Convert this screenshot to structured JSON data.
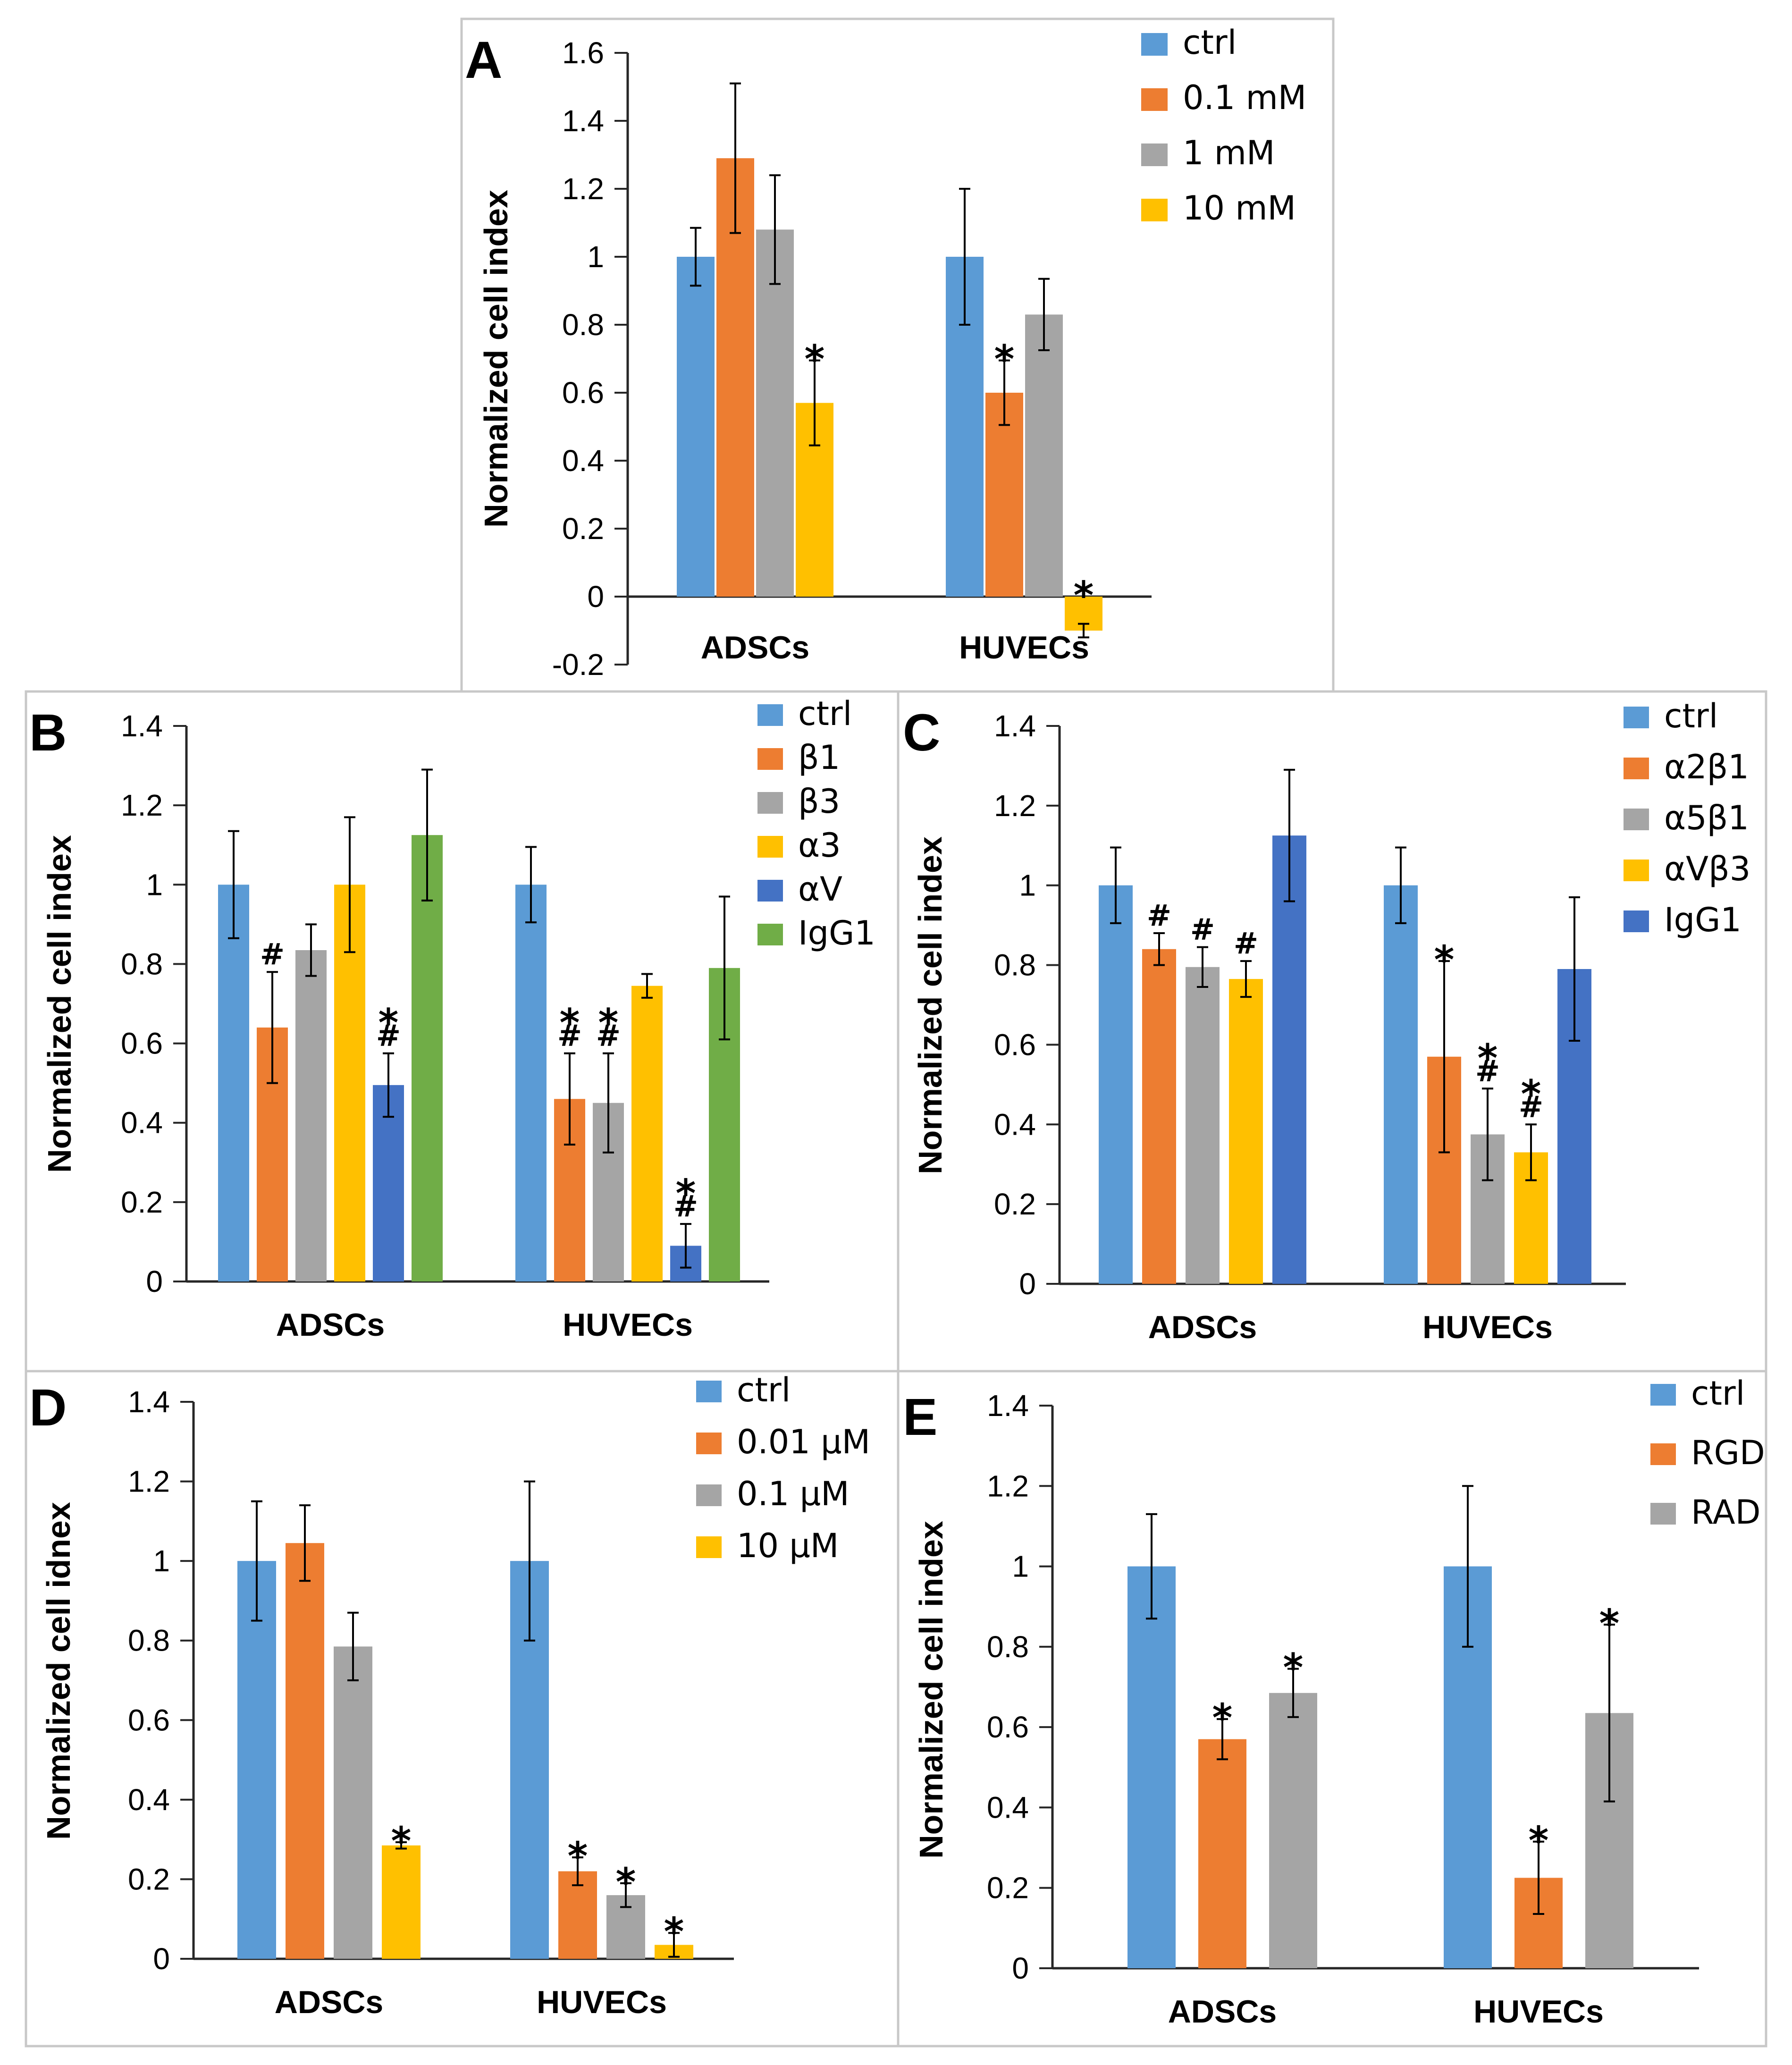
{
  "colors": {
    "ctrl": "#5B9BD5",
    "orange": "#ED7D31",
    "gray": "#A5A5A5",
    "yellow": "#FFC000",
    "darkblue": "#4472C4",
    "green": "#70AD47"
  },
  "chart_data": [
    {
      "panel": "A",
      "type": "bar",
      "ylabel": "Normalized cell index",
      "ylim": [
        -0.2,
        1.6
      ],
      "yticks": [
        "-0.2",
        "0",
        "0.2",
        "0.4",
        "0.6",
        "0.8",
        "1",
        "1.2",
        "1.4",
        "1.6"
      ],
      "categories": [
        "ADSCs",
        "HUVECs"
      ],
      "series": [
        {
          "name": "ctrl",
          "color": "#5B9BD5",
          "values": [
            1.0,
            1.0
          ],
          "errors": [
            0.085,
            0.2
          ],
          "marks": [
            [],
            []
          ]
        },
        {
          "name": "0.1 mM",
          "color": "#ED7D31",
          "values": [
            1.29,
            0.6
          ],
          "errors": [
            0.22,
            0.095
          ],
          "marks": [
            [],
            [
              "*"
            ]
          ]
        },
        {
          "name": "1 mM",
          "color": "#A5A5A5",
          "values": [
            1.08,
            0.83
          ],
          "errors": [
            0.16,
            0.105
          ],
          "marks": [
            [],
            []
          ]
        },
        {
          "name": "10 mM",
          "color": "#FFC000",
          "values": [
            0.57,
            -0.1
          ],
          "errors": [
            0.125,
            0.02
          ],
          "marks": [
            [
              "*"
            ],
            [
              "*"
            ]
          ]
        }
      ]
    },
    {
      "panel": "B",
      "type": "bar",
      "ylabel": "Normalized cell index",
      "ylim": [
        0,
        1.4
      ],
      "yticks": [
        "0",
        "0.2",
        "0.4",
        "0.6",
        "0.8",
        "1",
        "1.2",
        "1.4"
      ],
      "categories": [
        "ADSCs",
        "HUVECs"
      ],
      "series": [
        {
          "name": "ctrl",
          "color": "#5B9BD5",
          "values": [
            1.0,
            1.0
          ],
          "errors": [
            0.135,
            0.095
          ],
          "marks": [
            [],
            []
          ]
        },
        {
          "name": "β1",
          "color": "#ED7D31",
          "values": [
            0.64,
            0.46
          ],
          "errors": [
            0.14,
            0.115
          ],
          "marks": [
            [
              "#"
            ],
            [
              "*",
              "#"
            ]
          ]
        },
        {
          "name": "β3",
          "color": "#A5A5A5",
          "values": [
            0.835,
            0.45
          ],
          "errors": [
            0.065,
            0.125
          ],
          "marks": [
            [],
            [
              "*",
              "#"
            ]
          ]
        },
        {
          "name": "α3",
          "color": "#FFC000",
          "values": [
            1.0,
            0.745
          ],
          "errors": [
            0.17,
            0.03
          ],
          "marks": [
            [],
            []
          ]
        },
        {
          "name": "αV",
          "color": "#4472C4",
          "values": [
            0.495,
            0.09
          ],
          "errors": [
            0.08,
            0.055
          ],
          "marks": [
            [
              "*",
              "#"
            ],
            [
              "*",
              "#"
            ]
          ]
        },
        {
          "name": "IgG1",
          "color": "#70AD47",
          "values": [
            1.125,
            0.79
          ],
          "errors": [
            0.165,
            0.18
          ],
          "marks": [
            [],
            []
          ]
        }
      ]
    },
    {
      "panel": "C",
      "type": "bar",
      "ylabel": "Normalized cell index",
      "ylim": [
        0,
        1.4
      ],
      "yticks": [
        "0",
        "0.2",
        "0.4",
        "0.6",
        "0.8",
        "1",
        "1.2",
        "1.4"
      ],
      "categories": [
        "ADSCs",
        "HUVECs"
      ],
      "series": [
        {
          "name": "ctrl",
          "color": "#5B9BD5",
          "values": [
            1.0,
            1.0
          ],
          "errors": [
            0.095,
            0.095
          ],
          "marks": [
            [],
            []
          ]
        },
        {
          "name": "α2β1",
          "color": "#ED7D31",
          "values": [
            0.84,
            0.57
          ],
          "errors": [
            0.04,
            0.24
          ],
          "marks": [
            [
              "#"
            ],
            [
              "*"
            ]
          ]
        },
        {
          "name": "α5β1",
          "color": "#A5A5A5",
          "values": [
            0.795,
            0.375
          ],
          "errors": [
            0.05,
            0.115
          ],
          "marks": [
            [
              "#"
            ],
            [
              "*",
              "#"
            ]
          ]
        },
        {
          "name": "αVβ3",
          "color": "#FFC000",
          "values": [
            0.765,
            0.33
          ],
          "errors": [
            0.045,
            0.07
          ],
          "marks": [
            [
              "#"
            ],
            [
              "*",
              "#"
            ]
          ]
        },
        {
          "name": "IgG1",
          "color": "#4472C4",
          "values": [
            1.125,
            0.79
          ],
          "errors": [
            0.165,
            0.18
          ],
          "marks": [
            [],
            []
          ]
        }
      ]
    },
    {
      "panel": "D",
      "type": "bar",
      "ylabel": "Normalized cell idnex",
      "ylim": [
        0,
        1.4
      ],
      "yticks": [
        "0",
        "0.2",
        "0.4",
        "0.6",
        "0.8",
        "1",
        "1.2",
        "1.4"
      ],
      "categories": [
        "ADSCs",
        "HUVECs"
      ],
      "series": [
        {
          "name": "ctrl",
          "color": "#5B9BD5",
          "values": [
            1.0,
            1.0
          ],
          "errors": [
            0.15,
            0.2
          ],
          "marks": [
            [],
            []
          ]
        },
        {
          "name": "0.01 μM",
          "color": "#ED7D31",
          "values": [
            1.045,
            0.22
          ],
          "errors": [
            0.095,
            0.035
          ],
          "marks": [
            [],
            [
              "*"
            ]
          ]
        },
        {
          "name": "0.1 μM",
          "color": "#A5A5A5",
          "values": [
            0.785,
            0.16
          ],
          "errors": [
            0.085,
            0.03
          ],
          "marks": [
            [],
            [
              "*"
            ]
          ]
        },
        {
          "name": "10 μM",
          "color": "#FFC000",
          "values": [
            0.285,
            0.035
          ],
          "errors": [
            0.008,
            0.03
          ],
          "marks": [
            [
              "*"
            ],
            [
              "*"
            ]
          ]
        }
      ]
    },
    {
      "panel": "E",
      "type": "bar",
      "ylabel": "Normalized cell index",
      "ylim": [
        0,
        1.4
      ],
      "yticks": [
        "0",
        "0.2",
        "0.4",
        "0.6",
        "0.8",
        "1",
        "1.2",
        "1.4"
      ],
      "categories": [
        "ADSCs",
        "HUVECs"
      ],
      "series": [
        {
          "name": "ctrl",
          "color": "#5B9BD5",
          "values": [
            1.0,
            1.0
          ],
          "errors": [
            0.13,
            0.2
          ],
          "marks": [
            [],
            []
          ]
        },
        {
          "name": "RGD",
          "color": "#ED7D31",
          "values": [
            0.57,
            0.225
          ],
          "errors": [
            0.05,
            0.09
          ],
          "marks": [
            [
              "*"
            ],
            [
              "*"
            ]
          ]
        },
        {
          "name": "RAD",
          "color": "#A5A5A5",
          "values": [
            0.685,
            0.635
          ],
          "errors": [
            0.06,
            0.22
          ],
          "marks": [
            [
              "*"
            ],
            [
              "*"
            ]
          ]
        }
      ]
    }
  ]
}
